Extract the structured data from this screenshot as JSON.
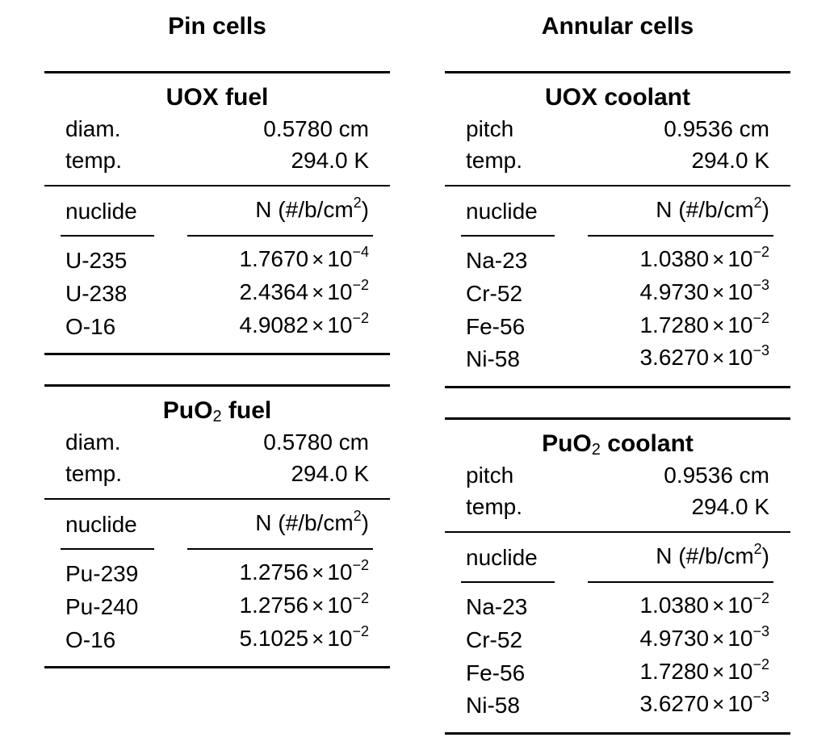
{
  "columns": [
    {
      "title": "Pin cells",
      "blocks": [
        {
          "title_main": "UOX fuel",
          "title_sub": "",
          "title_rest": "",
          "params": [
            {
              "label": "diam.",
              "value": "0.5780 cm"
            },
            {
              "label": "temp.",
              "value": "294.0 K"
            }
          ],
          "header_left": "nuclide",
          "header_right": "N (#/b/cm",
          "header_right_sup": "2",
          "header_right_end": ")",
          "rows": [
            {
              "nuclide": "U-235",
              "mantissa": "1.7670",
              "x": "×",
              "base": "10",
              "exp": "−4"
            },
            {
              "nuclide": "U-238",
              "mantissa": "2.4364",
              "x": "×",
              "base": "10",
              "exp": "−2"
            },
            {
              "nuclide": "O-16",
              "mantissa": "4.9082",
              "x": "×",
              "base": "10",
              "exp": "−2"
            }
          ]
        },
        {
          "title_main": "PuO",
          "title_sub": "2",
          "title_rest": " fuel",
          "params": [
            {
              "label": "diam.",
              "value": "0.5780 cm"
            },
            {
              "label": "temp.",
              "value": "294.0 K"
            }
          ],
          "header_left": "nuclide",
          "header_right": "N (#/b/cm",
          "header_right_sup": "2",
          "header_right_end": ")",
          "rows": [
            {
              "nuclide": "Pu-239",
              "mantissa": "1.2756",
              "x": "×",
              "base": "10",
              "exp": "−2"
            },
            {
              "nuclide": "Pu-240",
              "mantissa": "1.2756",
              "x": "×",
              "base": "10",
              "exp": "−2"
            },
            {
              "nuclide": "O-16",
              "mantissa": "5.1025",
              "x": "×",
              "base": "10",
              "exp": "−2"
            }
          ]
        }
      ]
    },
    {
      "title": "Annular cells",
      "blocks": [
        {
          "title_main": "UOX coolant",
          "title_sub": "",
          "title_rest": "",
          "params": [
            {
              "label": "pitch",
              "value": "0.9536 cm"
            },
            {
              "label": "temp.",
              "value": "294.0 K"
            }
          ],
          "header_left": "nuclide",
          "header_right": "N (#/b/cm",
          "header_right_sup": "2",
          "header_right_end": ")",
          "rows": [
            {
              "nuclide": "Na-23",
              "mantissa": "1.0380",
              "x": "×",
              "base": "10",
              "exp": "−2"
            },
            {
              "nuclide": "Cr-52",
              "mantissa": "4.9730",
              "x": "×",
              "base": "10",
              "exp": "−3"
            },
            {
              "nuclide": "Fe-56",
              "mantissa": "1.7280",
              "x": "×",
              "base": "10",
              "exp": "−2"
            },
            {
              "nuclide": "Ni-58",
              "mantissa": "3.6270",
              "x": "×",
              "base": "10",
              "exp": "−3"
            }
          ]
        },
        {
          "title_main": "PuO",
          "title_sub": "2",
          "title_rest": " coolant",
          "params": [
            {
              "label": "pitch",
              "value": "0.9536 cm"
            },
            {
              "label": "temp.",
              "value": "294.0 K"
            }
          ],
          "header_left": "nuclide",
          "header_right": "N (#/b/cm",
          "header_right_sup": "2",
          "header_right_end": ")",
          "rows": [
            {
              "nuclide": "Na-23",
              "mantissa": "1.0380",
              "x": "×",
              "base": "10",
              "exp": "−2"
            },
            {
              "nuclide": "Cr-52",
              "mantissa": "4.9730",
              "x": "×",
              "base": "10",
              "exp": "−3"
            },
            {
              "nuclide": "Fe-56",
              "mantissa": "1.7280",
              "x": "×",
              "base": "10",
              "exp": "−2"
            },
            {
              "nuclide": "Ni-58",
              "mantissa": "3.6270",
              "x": "×",
              "base": "10",
              "exp": "−3"
            }
          ]
        }
      ]
    }
  ]
}
